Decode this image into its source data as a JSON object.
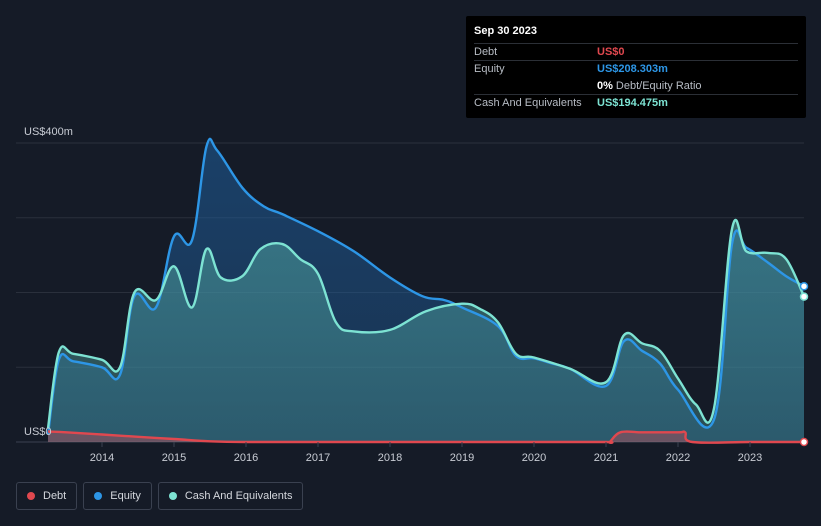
{
  "tooltip": {
    "date": "Sep 30 2023",
    "rows": {
      "debt": {
        "label": "Debt",
        "value": "US$0"
      },
      "equity": {
        "label": "Equity",
        "value": "US$208.303m"
      },
      "ratio": {
        "value": "0%",
        "text": "Debt/Equity Ratio"
      },
      "cash": {
        "label": "Cash And Equivalents",
        "value": "US$194.475m"
      }
    }
  },
  "legend": {
    "debt": "Debt",
    "equity": "Equity",
    "cash": "Cash And Equivalents"
  },
  "colors": {
    "debt": "#e0484f",
    "equity": "#2d96e6",
    "cash": "#7de3d3",
    "background": "#151b27"
  },
  "chart_data": {
    "type": "area",
    "title": "",
    "xlabel": "",
    "ylabel": "",
    "y_top_label": "US$400m",
    "y_bottom_label": "US$0",
    "ylim": [
      0,
      400
    ],
    "xlim": [
      2013.25,
      2023.75
    ],
    "x_ticks": [
      "2014",
      "2015",
      "2016",
      "2017",
      "2018",
      "2019",
      "2020",
      "2021",
      "2022",
      "2023"
    ],
    "grid": true,
    "legend_position": "bottom-left",
    "series": [
      {
        "name": "Debt",
        "color": "#e0484f",
        "points": [
          [
            2013.25,
            14
          ],
          [
            2013.5,
            13
          ],
          [
            2014,
            10
          ],
          [
            2014.5,
            7
          ],
          [
            2015,
            4
          ],
          [
            2015.5,
            1
          ],
          [
            2016,
            0
          ],
          [
            2017,
            0
          ],
          [
            2018,
            0
          ],
          [
            2019,
            0
          ],
          [
            2020,
            0
          ],
          [
            2021,
            0
          ],
          [
            2021.05,
            0
          ],
          [
            2021.2,
            13
          ],
          [
            2021.5,
            13
          ],
          [
            2022,
            13
          ],
          [
            2022.1,
            13
          ],
          [
            2022.2,
            0
          ],
          [
            2023,
            0
          ],
          [
            2023.75,
            0
          ]
        ]
      },
      {
        "name": "Equity",
        "color": "#2d96e6",
        "points": [
          [
            2013.25,
            10
          ],
          [
            2013.4,
            110
          ],
          [
            2013.6,
            108
          ],
          [
            2014,
            100
          ],
          [
            2014.25,
            90
          ],
          [
            2014.45,
            195
          ],
          [
            2014.75,
            180
          ],
          [
            2015,
            275
          ],
          [
            2015.25,
            270
          ],
          [
            2015.45,
            395
          ],
          [
            2015.6,
            390
          ],
          [
            2015.95,
            340
          ],
          [
            2016.25,
            315
          ],
          [
            2016.5,
            305
          ],
          [
            2017,
            282
          ],
          [
            2017.5,
            255
          ],
          [
            2018,
            220
          ],
          [
            2018.45,
            195
          ],
          [
            2018.75,
            190
          ],
          [
            2019,
            180
          ],
          [
            2019.5,
            155
          ],
          [
            2019.75,
            115
          ],
          [
            2020,
            112
          ],
          [
            2020.25,
            105
          ],
          [
            2020.5,
            98
          ],
          [
            2021,
            75
          ],
          [
            2021.25,
            135
          ],
          [
            2021.5,
            122
          ],
          [
            2021.75,
            105
          ],
          [
            2022,
            70
          ],
          [
            2022.5,
            30
          ],
          [
            2022.75,
            265
          ],
          [
            2022.95,
            260
          ],
          [
            2023.25,
            240
          ],
          [
            2023.5,
            222
          ],
          [
            2023.75,
            208.3
          ]
        ]
      },
      {
        "name": "Cash And Equivalents",
        "color": "#7de3d3",
        "points": [
          [
            2013.25,
            18
          ],
          [
            2013.4,
            120
          ],
          [
            2013.6,
            118
          ],
          [
            2014,
            110
          ],
          [
            2014.25,
            100
          ],
          [
            2014.45,
            200
          ],
          [
            2014.75,
            190
          ],
          [
            2015,
            235
          ],
          [
            2015.25,
            180
          ],
          [
            2015.45,
            258
          ],
          [
            2015.65,
            220
          ],
          [
            2015.95,
            222
          ],
          [
            2016.2,
            258
          ],
          [
            2016.5,
            265
          ],
          [
            2016.75,
            245
          ],
          [
            2017,
            225
          ],
          [
            2017.25,
            160
          ],
          [
            2017.5,
            148
          ],
          [
            2018,
            150
          ],
          [
            2018.5,
            175
          ],
          [
            2019,
            185
          ],
          [
            2019.25,
            178
          ],
          [
            2019.5,
            160
          ],
          [
            2019.75,
            118
          ],
          [
            2020,
            113
          ],
          [
            2020.5,
            98
          ],
          [
            2021,
            80
          ],
          [
            2021.25,
            143
          ],
          [
            2021.5,
            132
          ],
          [
            2021.75,
            122
          ],
          [
            2022,
            85
          ],
          [
            2022.25,
            50
          ],
          [
            2022.5,
            45
          ],
          [
            2022.75,
            285
          ],
          [
            2022.95,
            255
          ],
          [
            2023.25,
            253
          ],
          [
            2023.5,
            245
          ],
          [
            2023.75,
            194.5
          ]
        ]
      }
    ]
  }
}
